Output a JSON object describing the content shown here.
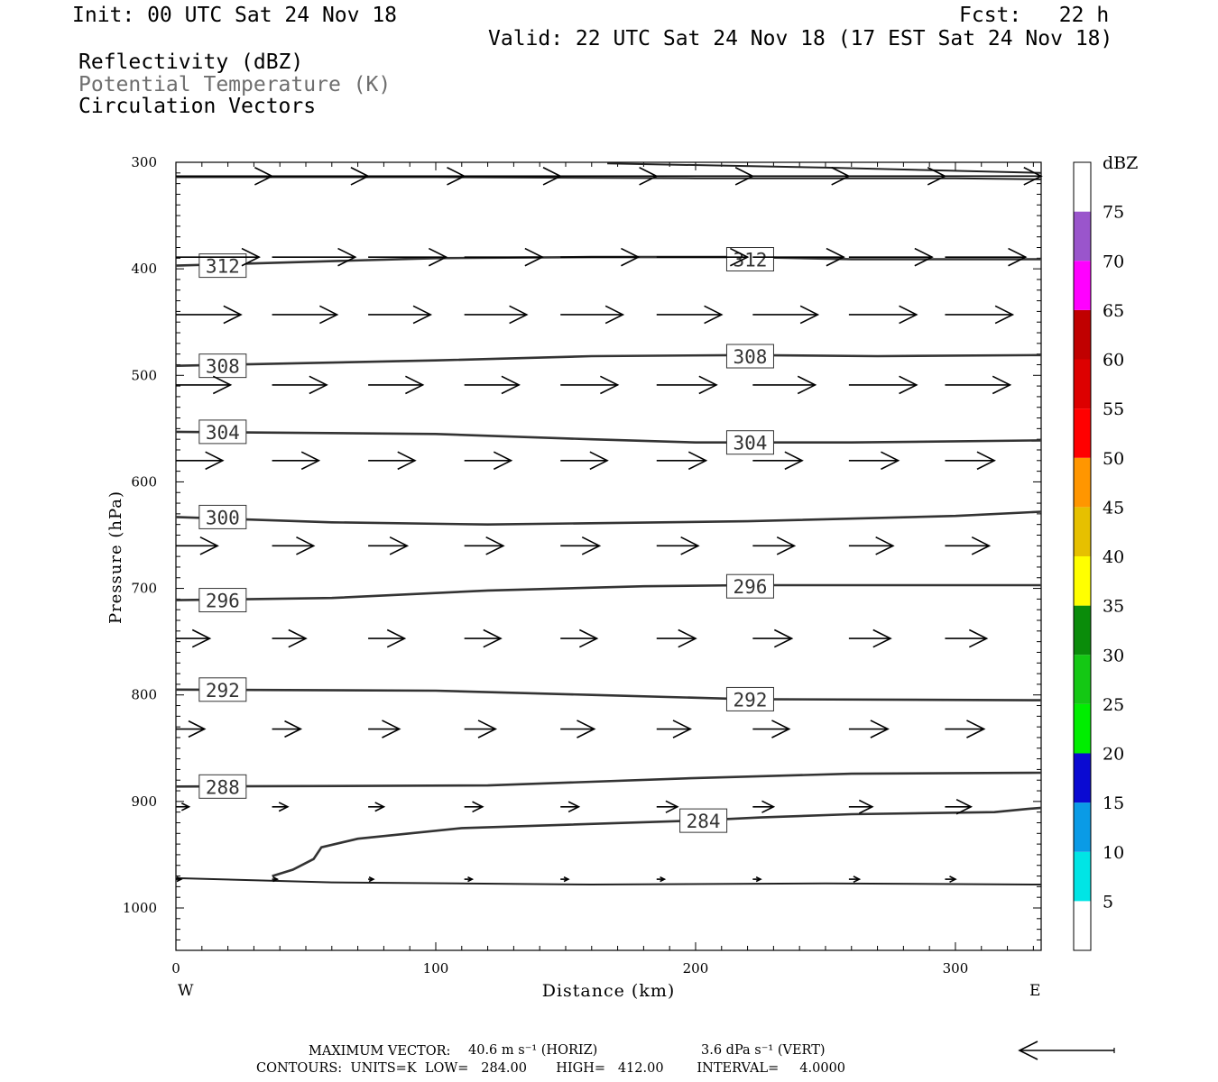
{
  "header": {
    "init": "Init: 00 UTC Sat 24 Nov 18",
    "fcst": "Fcst:   22 h",
    "valid": "Valid: 22 UTC Sat 24 Nov 18 (17 EST Sat 24 Nov 18)",
    "fields": [
      "Reflectivity (dBZ)",
      "Potential Temperature (K)",
      "Circulation Vectors"
    ]
  },
  "footer": {
    "max_vector_label": "MAXIMUM VECTOR:",
    "max_vector_horiz": "40.6 m s⁻¹ (HORIZ)",
    "max_vector_vert": "3.6 dPa s⁻¹ (VERT)",
    "contours": "CONTOURS:  UNITS=K  LOW=   284.00       HIGH=   412.00        INTERVAL=     4.0000"
  },
  "colorbar": {
    "title": "dBZ",
    "levels": [
      {
        "label": "",
        "color": "#ffffff"
      },
      {
        "label": "5",
        "color": "#00e5e5"
      },
      {
        "label": "10",
        "color": "#0a9be6"
      },
      {
        "label": "15",
        "color": "#0a0ad2"
      },
      {
        "label": "20",
        "color": "#00ee00"
      },
      {
        "label": "25",
        "color": "#14c814"
      },
      {
        "label": "30",
        "color": "#0a8c0a"
      },
      {
        "label": "35",
        "color": "#ffff00"
      },
      {
        "label": "40",
        "color": "#e6c000"
      },
      {
        "label": "45",
        "color": "#ff9600"
      },
      {
        "label": "50",
        "color": "#ff0000"
      },
      {
        "label": "55",
        "color": "#dd0000"
      },
      {
        "label": "60",
        "color": "#c00000"
      },
      {
        "label": "65",
        "color": "#ff00ff"
      },
      {
        "label": "70",
        "color": "#9a55cc"
      },
      {
        "label": "75",
        "color": "#ffffff"
      }
    ]
  },
  "chart_data": {
    "type": "cross-section",
    "xlabel": "Distance (km)",
    "ylabel": "Pressure (hPa)",
    "x_ticks": [
      0,
      100,
      200,
      300
    ],
    "y_ticks": [
      300,
      400,
      500,
      600,
      700,
      800,
      900,
      1000
    ],
    "xlim": [
      0,
      333
    ],
    "ylim": [
      1040,
      300
    ],
    "x_end_labels": {
      "left": "W",
      "right": "E"
    },
    "contours": [
      {
        "level": "284",
        "points": [
          [
            37,
            970
          ],
          [
            45,
            964
          ],
          [
            53,
            954
          ],
          [
            56,
            943
          ],
          [
            70,
            935
          ],
          [
            110,
            925
          ],
          [
            200,
            918
          ],
          [
            225,
            915
          ],
          [
            260,
            912
          ],
          [
            315,
            910
          ],
          [
            328,
            907
          ],
          [
            333,
            906
          ]
        ],
        "labels": [
          [
            203,
            918
          ]
        ]
      },
      {
        "level": "288",
        "points": [
          [
            0,
            886
          ],
          [
            120,
            885
          ],
          [
            200,
            878
          ],
          [
            260,
            874
          ],
          [
            333,
            873
          ]
        ],
        "labels": [
          [
            18,
            886
          ]
        ]
      },
      {
        "level": "292",
        "points": [
          [
            0,
            795
          ],
          [
            100,
            796
          ],
          [
            160,
            800
          ],
          [
            220,
            804
          ],
          [
            333,
            805
          ]
        ],
        "labels": [
          [
            18,
            795
          ],
          [
            221,
            804
          ]
        ]
      },
      {
        "level": "296",
        "points": [
          [
            0,
            711
          ],
          [
            60,
            709
          ],
          [
            120,
            702
          ],
          [
            180,
            698
          ],
          [
            220,
            697
          ],
          [
            333,
            697
          ]
        ],
        "labels": [
          [
            18,
            711
          ],
          [
            221,
            698
          ]
        ]
      },
      {
        "level": "300",
        "points": [
          [
            0,
            633
          ],
          [
            60,
            638
          ],
          [
            120,
            640
          ],
          [
            220,
            637
          ],
          [
            300,
            632
          ],
          [
            333,
            628
          ]
        ],
        "labels": [
          [
            18,
            633
          ]
        ]
      },
      {
        "level": "304",
        "points": [
          [
            0,
            553
          ],
          [
            100,
            555
          ],
          [
            160,
            560
          ],
          [
            200,
            563
          ],
          [
            260,
            563
          ],
          [
            333,
            561
          ]
        ],
        "labels": [
          [
            18,
            553
          ],
          [
            221,
            563
          ]
        ]
      },
      {
        "level": "308",
        "points": [
          [
            0,
            491
          ],
          [
            100,
            486
          ],
          [
            160,
            482
          ],
          [
            220,
            481
          ],
          [
            270,
            482
          ],
          [
            333,
            481
          ]
        ],
        "labels": [
          [
            18,
            491
          ],
          [
            221,
            482
          ]
        ]
      },
      {
        "level": "312",
        "points": [
          [
            0,
            397
          ],
          [
            100,
            390
          ],
          [
            160,
            389
          ],
          [
            220,
            389
          ],
          [
            260,
            391
          ],
          [
            333,
            391
          ]
        ],
        "labels": [
          [
            18,
            397
          ],
          [
            221,
            391
          ]
        ]
      }
    ],
    "unlabeled_lines": [
      {
        "points": [
          [
            0,
            972
          ],
          [
            60,
            976
          ],
          [
            160,
            978
          ],
          [
            250,
            977
          ],
          [
            333,
            978
          ]
        ]
      },
      {
        "points": [
          [
            0,
            314
          ],
          [
            100,
            314
          ],
          [
            200,
            315
          ],
          [
            300,
            315
          ],
          [
            333,
            316
          ]
        ]
      },
      {
        "points": [
          [
            166,
            301
          ],
          [
            250,
            305
          ],
          [
            333,
            310
          ]
        ]
      }
    ],
    "vector_rows": [
      {
        "p": 313,
        "lens": [
          37,
          37,
          37,
          37,
          37,
          37,
          37,
          37,
          37
        ],
        "start_x0": 0,
        "end_x_last": 333
      },
      {
        "p": 389,
        "lens": [
          32,
          32,
          30,
          30,
          30,
          35,
          35,
          32,
          31
        ],
        "start_x0": 0
      },
      {
        "p": 443,
        "lens": [
          25,
          25,
          24,
          24,
          24,
          25,
          25,
          26,
          26
        ]
      },
      {
        "p": 509,
        "lens": [
          21,
          21,
          21,
          21,
          22,
          23,
          24,
          26,
          25
        ]
      },
      {
        "p": 580,
        "lens": [
          18,
          18,
          18,
          18,
          18,
          19,
          19,
          19,
          19
        ]
      },
      {
        "p": 660,
        "lens": [
          16,
          16,
          15,
          15,
          15,
          16,
          16,
          17,
          17
        ]
      },
      {
        "p": 747,
        "lens": [
          13,
          13,
          14,
          14,
          14,
          15,
          15,
          16,
          16
        ]
      },
      {
        "p": 832,
        "lens": [
          11,
          11,
          12,
          12,
          13,
          13,
          14,
          15,
          15
        ]
      },
      {
        "p": 905,
        "lens": [
          5,
          6,
          6,
          7,
          7,
          8,
          8,
          9,
          10
        ]
      },
      {
        "p": 973,
        "lens": [
          2,
          2,
          2,
          3,
          3,
          3,
          3,
          4,
          4
        ]
      }
    ]
  }
}
